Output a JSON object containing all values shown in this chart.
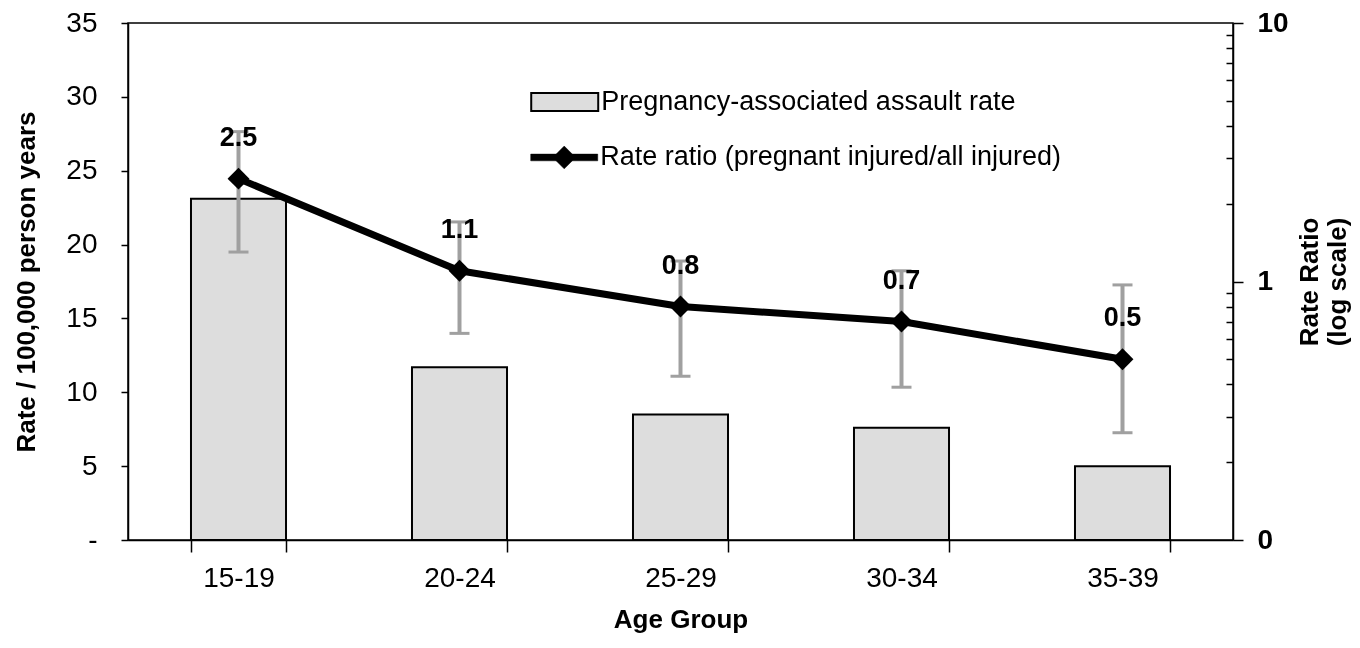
{
  "chart_data": {
    "type": "bar",
    "xlabel": "Age Group",
    "ylabel": "Rate / 100,000 person years",
    "y2label": "Rate Ratio\n(log scale)",
    "categories": [
      "15-19",
      "20-24",
      "25-29",
      "30-34",
      "35-39"
    ],
    "series": [
      {
        "name": "Pregnancy-associated assault rate",
        "color": "#dddddd",
        "values": [
          23.1,
          11.7,
          8.5,
          7.6,
          5.0
        ]
      },
      {
        "name": "Rate ratio (pregnant injured/all injured)",
        "type": "line",
        "axis": "y2",
        "color": "#000000",
        "marker": "diamond",
        "values": [
          2.5,
          1.1,
          0.8,
          0.7,
          0.5
        ],
        "value_labels": [
          "2.5",
          "1.1",
          "0.8",
          "0.7",
          "0.5"
        ],
        "errors": [
          [
            1.3,
            3.8
          ],
          [
            0.63,
            1.7
          ],
          [
            0.43,
            1.2
          ],
          [
            0.39,
            1.1
          ],
          [
            0.26,
            0.97
          ]
        ]
      }
    ],
    "ylim": [
      0,
      35
    ],
    "yticks": [
      {
        "value": 0,
        "label": "-"
      },
      5,
      10,
      15,
      20,
      25,
      30,
      35
    ],
    "y2lim": [
      0.1,
      10
    ],
    "y2ticks": [
      {
        "value": 0.1,
        "label": "0"
      },
      {
        "value": 0.2,
        "label": null
      },
      {
        "value": 0.3,
        "label": null
      },
      {
        "value": 0.4,
        "label": null
      },
      {
        "value": 0.5,
        "label": null
      },
      {
        "value": 0.6,
        "label": null
      },
      {
        "value": 0.7,
        "label": null
      },
      {
        "value": 0.8,
        "label": null
      },
      {
        "value": 0.9,
        "label": null
      },
      1,
      {
        "value": 2,
        "label": null
      },
      {
        "value": 3,
        "label": null
      },
      {
        "value": 4,
        "label": null
      },
      {
        "value": 5,
        "label": null
      },
      {
        "value": 6,
        "label": null
      },
      {
        "value": 7,
        "label": null
      },
      {
        "value": 8,
        "label": null
      },
      {
        "value": 9,
        "label": null
      },
      10
    ],
    "log": "y2",
    "legend": "top"
  }
}
